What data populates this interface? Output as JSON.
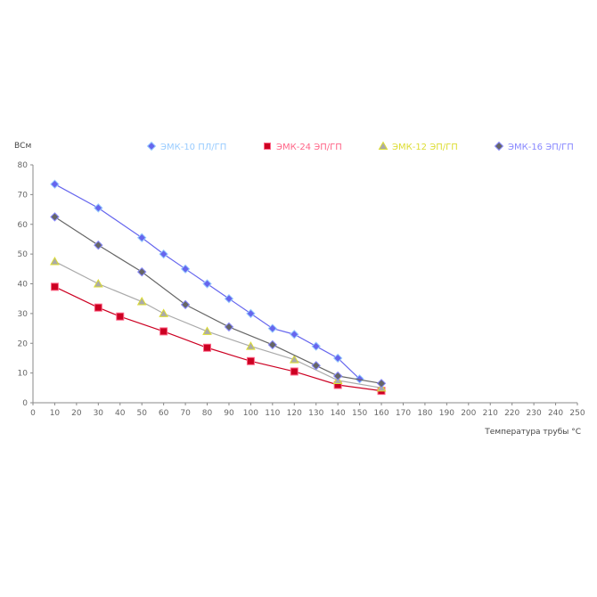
{
  "chart_data": {
    "type": "line",
    "ylabel": "ВСм",
    "xlabel": "Температура трубы °С",
    "ylim": [
      0,
      80
    ],
    "yticks": [
      "0",
      "10",
      "20",
      "30",
      "40",
      "50",
      "60",
      "70",
      "80"
    ],
    "xlim": [
      0,
      250
    ],
    "xticks": [
      "0",
      "10",
      "20",
      "30",
      "40",
      "50",
      "60",
      "70",
      "80",
      "90",
      "100",
      "110",
      "120",
      "130",
      "140",
      "150",
      "160",
      "170",
      "180",
      "190",
      "200",
      "210",
      "220",
      "230",
      "240",
      "250"
    ],
    "grid": false,
    "legend_position": "top",
    "series": [
      {
        "name": "ЭМК-10 ПЛ/ГП",
        "color": "#6666ee",
        "highlight": "#99ccff",
        "marker": "diamond",
        "x": [
          10,
          30,
          50,
          60,
          70,
          80,
          90,
          100,
          110,
          120,
          130,
          140,
          150
        ],
        "y": [
          73.5,
          65.5,
          55.5,
          50,
          45,
          40,
          35,
          30,
          25,
          23,
          19,
          15,
          8
        ]
      },
      {
        "name": "ЭМК-24 ЭП/ГП",
        "color": "#cc0022",
        "highlight": "#ff6688",
        "marker": "square",
        "x": [
          10,
          30,
          40,
          60,
          80,
          100,
          120,
          140,
          160
        ],
        "y": [
          39,
          32,
          29,
          24,
          18.5,
          14,
          10.5,
          6,
          4
        ]
      },
      {
        "name": "ЭМК-12 ЭП/ГП",
        "color": "#aaaaaa",
        "highlight": "#dddd33",
        "marker": "triangle",
        "x": [
          10,
          30,
          50,
          60,
          80,
          100,
          120,
          140,
          160
        ],
        "y": [
          47.5,
          40,
          34,
          30,
          24,
          19,
          14.5,
          7.5,
          5
        ]
      },
      {
        "name": "ЭМК-16 ЭП/ГП",
        "color": "#666666",
        "highlight": "#8888ff",
        "marker": "diamond",
        "x": [
          10,
          30,
          50,
          70,
          90,
          110,
          130,
          140,
          160
        ],
        "y": [
          62.5,
          53,
          44,
          33,
          25.5,
          19.5,
          12.5,
          9,
          6.5
        ]
      }
    ]
  }
}
